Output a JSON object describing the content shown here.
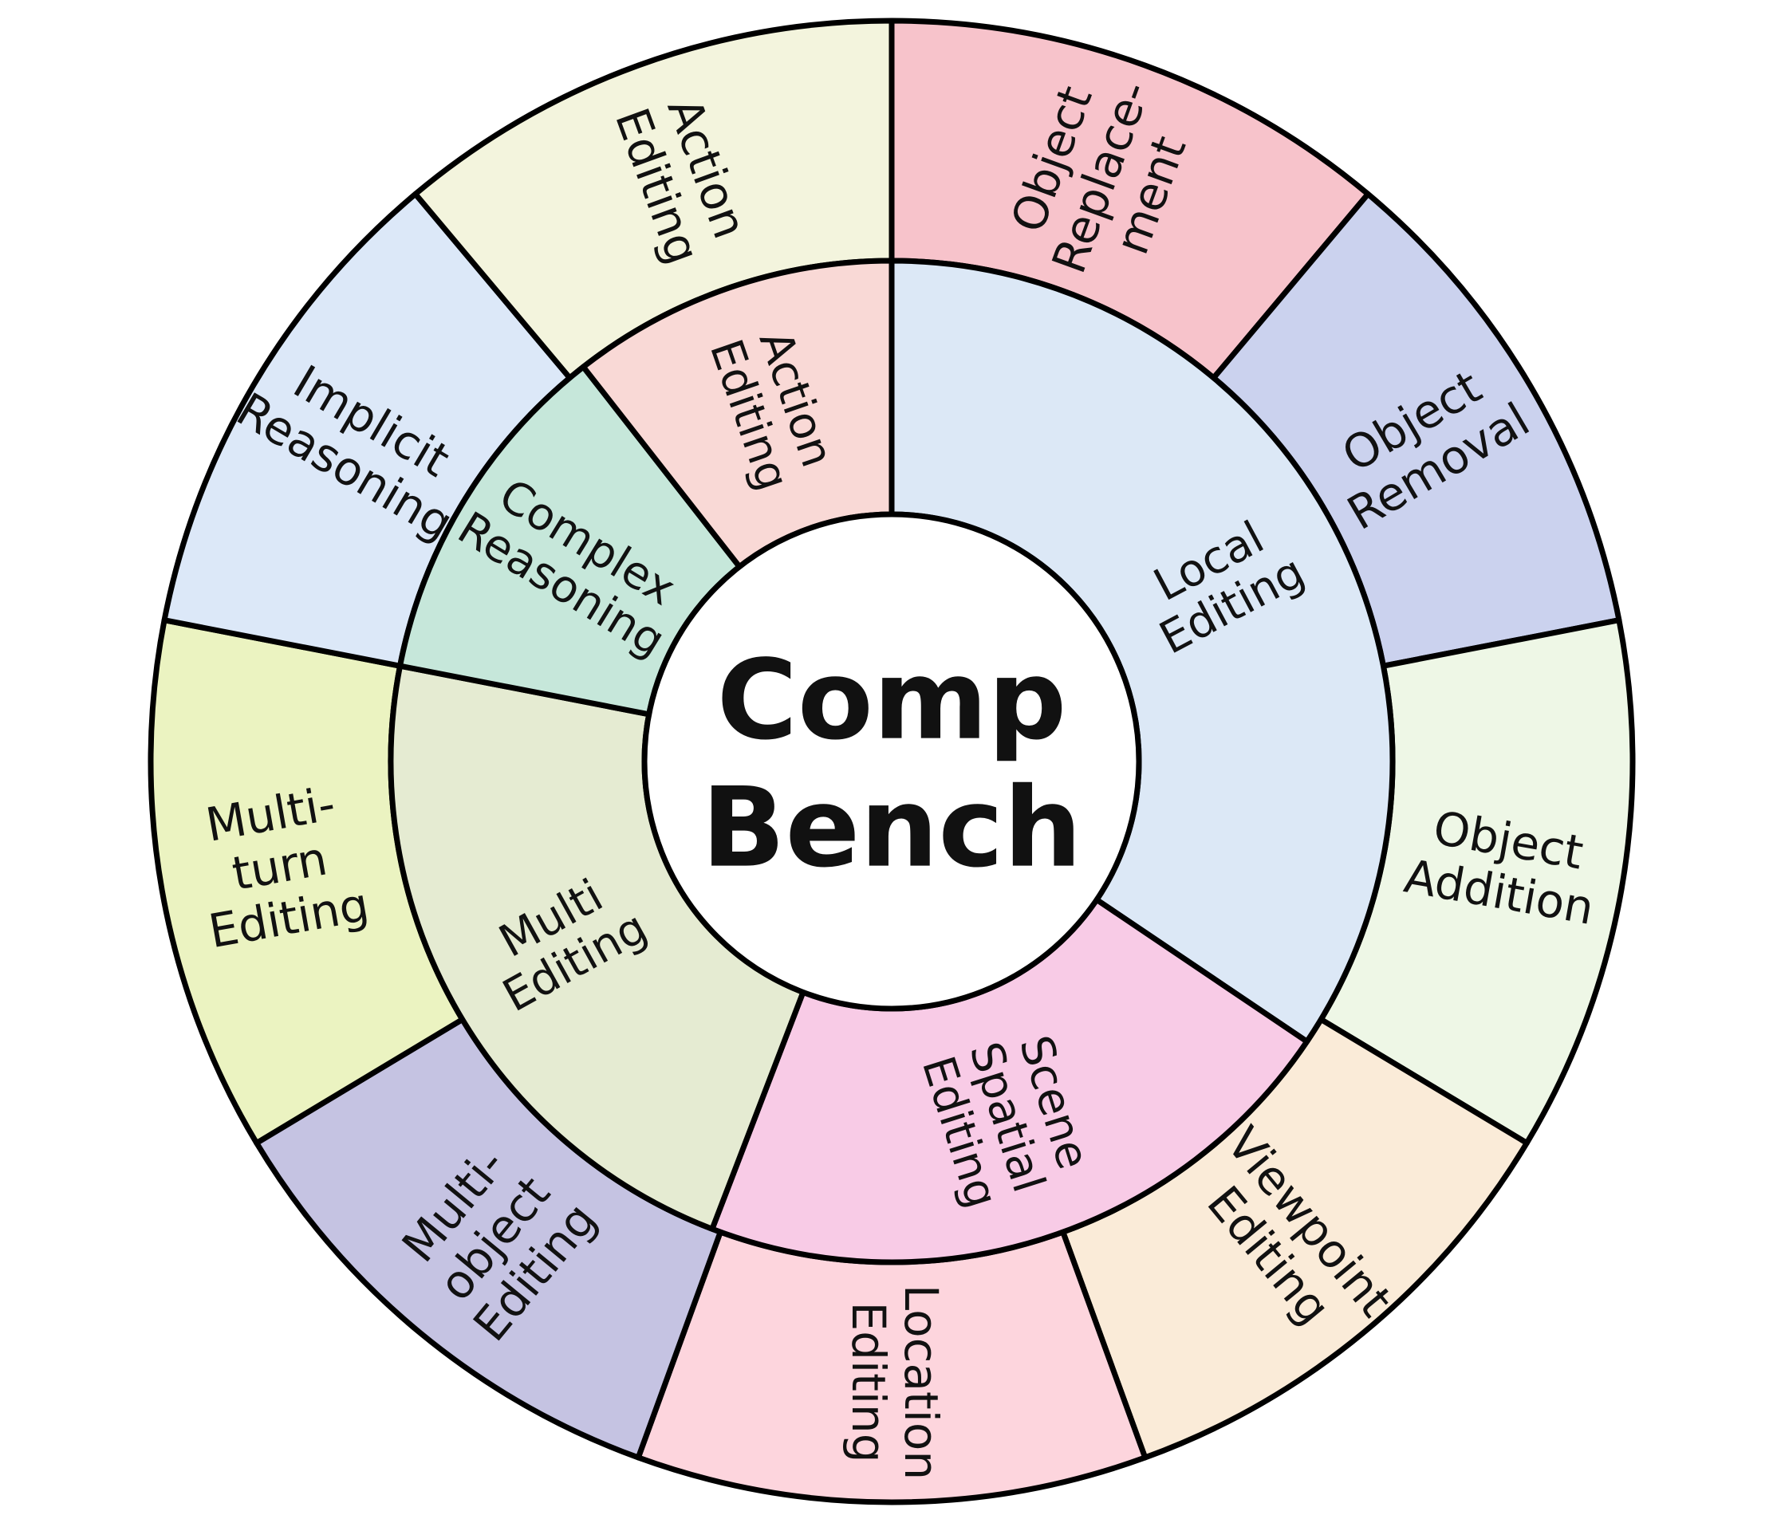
{
  "center": {
    "lines": [
      "Comp",
      "Bench"
    ],
    "fill": "#ffffff"
  },
  "inner_ring": [
    {
      "lines": [
        "Local",
        "Editing"
      ],
      "color": "#dce8f6",
      "start": 0,
      "end": 124
    },
    {
      "lines": [
        "Scene",
        "Spatial",
        "Editing"
      ],
      "color": "#f8cbe6",
      "start": 124,
      "end": 201
    },
    {
      "lines": [
        "Multi",
        "Editing"
      ],
      "color": "#e5ebd2",
      "start": 201,
      "end": 281
    },
    {
      "lines": [
        "Complex",
        "Reasoning"
      ],
      "color": "#c6e7da",
      "start": 281,
      "end": 322
    },
    {
      "lines": [
        "Action",
        "Editing"
      ],
      "color": "#f9d9d6",
      "start": 322,
      "end": 360
    }
  ],
  "outer_ring": [
    {
      "lines": [
        "Object",
        "Replace-",
        "ment"
      ],
      "color": "#f7c3cb",
      "start": 0,
      "end": 40
    },
    {
      "lines": [
        "Object",
        "Removal"
      ],
      "color": "#cbd2ee",
      "start": 40,
      "end": 79
    },
    {
      "lines": [
        "Object",
        "Addition"
      ],
      "color": "#eef7e6",
      "start": 79,
      "end": 121
    },
    {
      "lines": [
        "Viewpoint",
        "Editing"
      ],
      "color": "#faebd8",
      "start": 121,
      "end": 160
    },
    {
      "lines": [
        "Location",
        "Editing"
      ],
      "color": "#fdd5dd",
      "start": 160,
      "end": 200
    },
    {
      "lines": [
        "Multi-",
        "object",
        "Editing"
      ],
      "color": "#c5c3e2",
      "start": 200,
      "end": 239
    },
    {
      "lines": [
        "Multi-",
        "turn",
        "Editing"
      ],
      "color": "#ebf3c1",
      "start": 239,
      "end": 281
    },
    {
      "lines": [
        "Implicit",
        "Reasoning"
      ],
      "color": "#dce8f8",
      "start": 281,
      "end": 320
    },
    {
      "lines": [
        "Action",
        "Editing"
      ],
      "color": "#f3f4dd",
      "start": 320,
      "end": 360
    }
  ]
}
